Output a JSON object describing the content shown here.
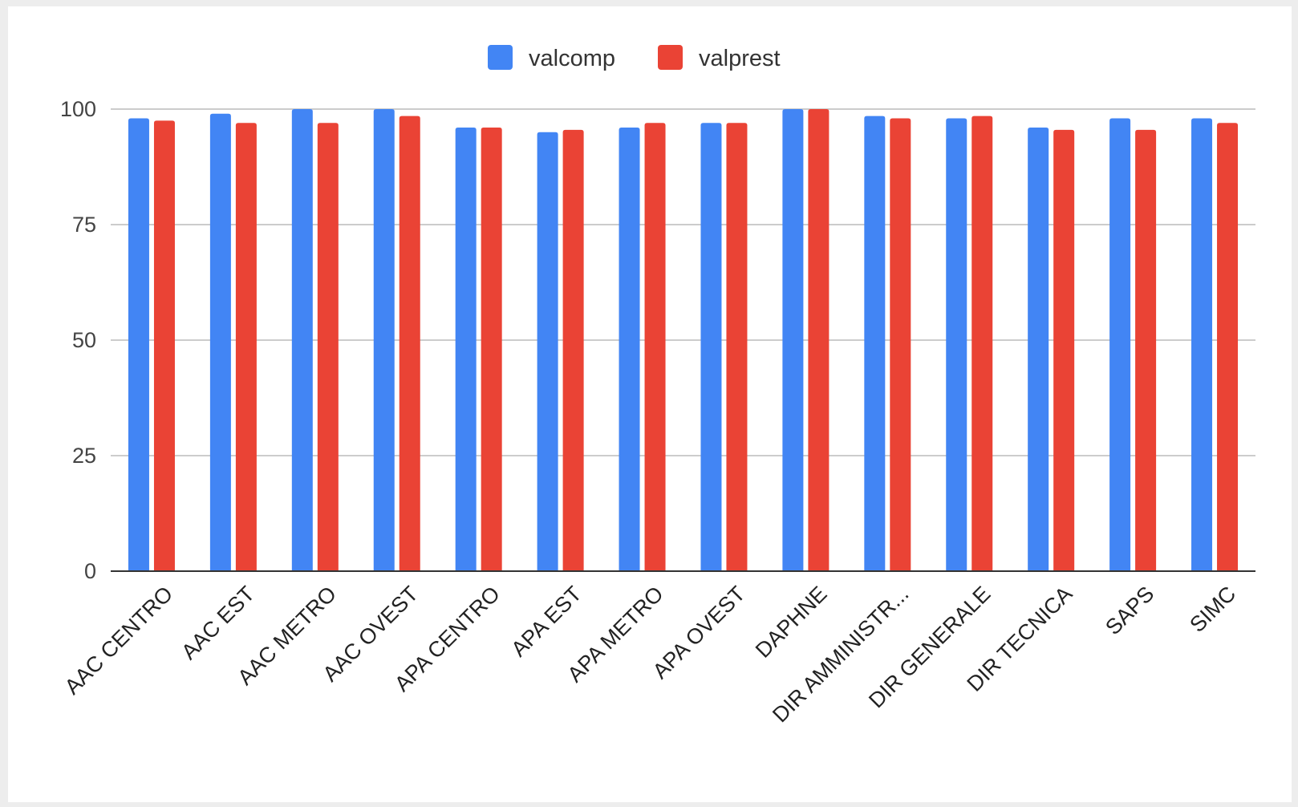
{
  "chart_data": {
    "type": "bar",
    "title": "",
    "xlabel": "",
    "ylabel": "",
    "ylim": [
      0,
      100
    ],
    "yticks": [
      0,
      25,
      50,
      75,
      100
    ],
    "grid": true,
    "legend_position": "top-center",
    "categories": [
      "AAC CENTRO",
      "AAC EST",
      "AAC METRO",
      "AAC OVEST",
      "APA CENTRO",
      "APA EST",
      "APA METRO",
      "APA OVEST",
      "DAPHNE",
      "DIR AMMINISTR...",
      "DIR GENERALE",
      "DIR TECNICA",
      "SAPS",
      "SIMC"
    ],
    "series": [
      {
        "name": "valcomp",
        "color": "#4285F4",
        "values": [
          98,
          99,
          100,
          100,
          96,
          95,
          96,
          97,
          100,
          98.5,
          98,
          96,
          98,
          98
        ]
      },
      {
        "name": "valprest",
        "color": "#EA4335",
        "values": [
          97.5,
          97,
          97,
          98.5,
          96,
          95.5,
          97,
          97,
          100,
          98,
          98.5,
          95.5,
          95.5,
          97
        ]
      }
    ]
  }
}
